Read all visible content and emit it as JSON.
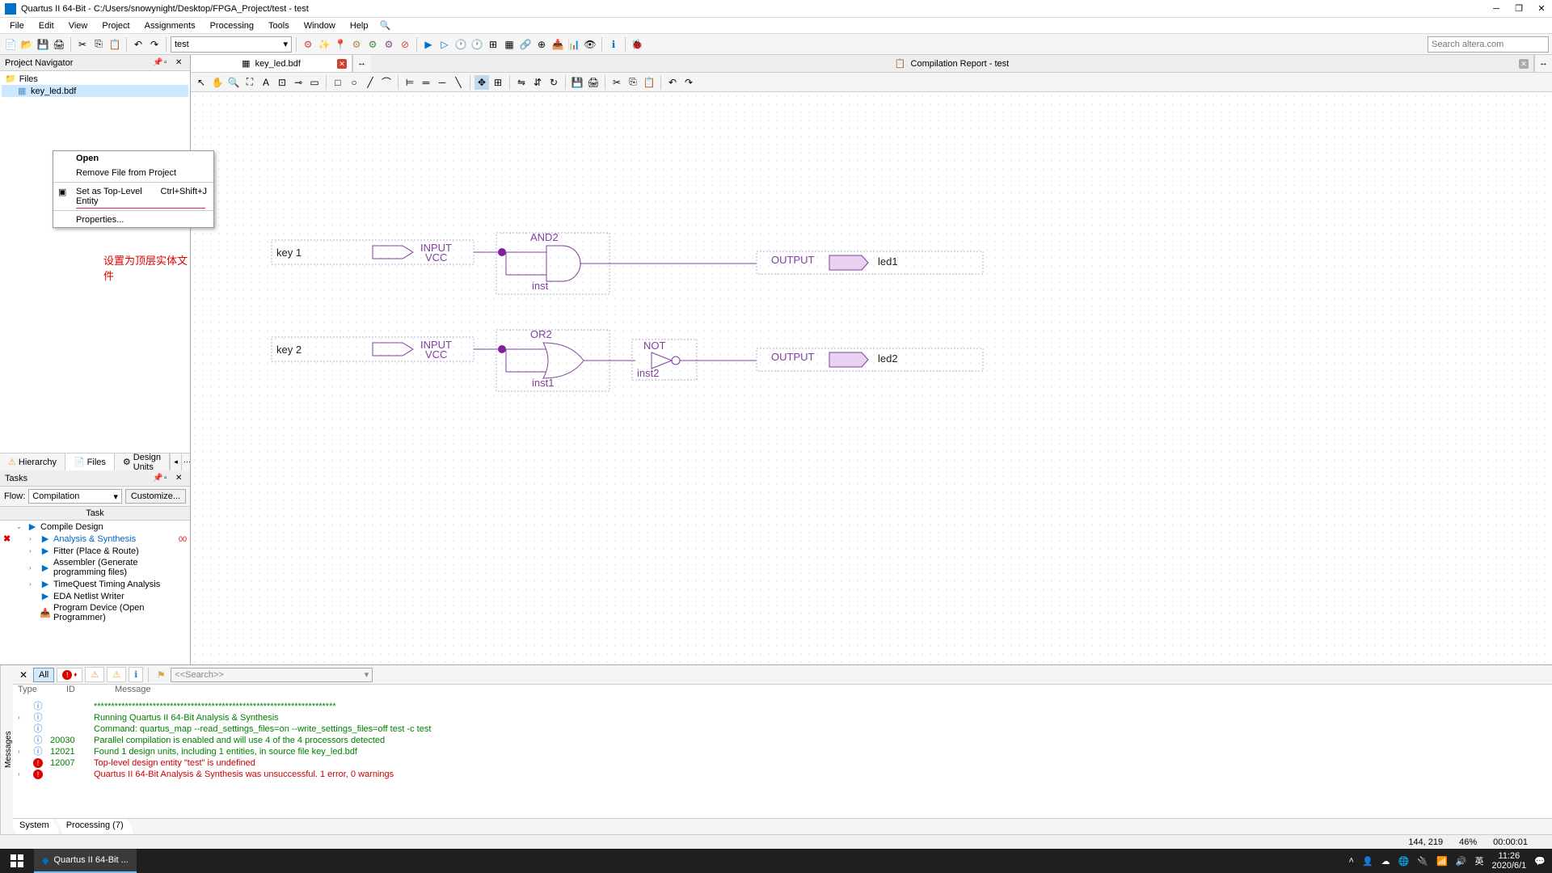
{
  "window": {
    "title": "Quartus II 64-Bit - C:/Users/snowynight/Desktop/FPGA_Project/test - test",
    "search_placeholder": "Search altera.com"
  },
  "menubar": [
    "File",
    "Edit",
    "View",
    "Project",
    "Assignments",
    "Processing",
    "Tools",
    "Window",
    "Help"
  ],
  "toolbar": {
    "project_combo": "test"
  },
  "project_nav": {
    "title": "Project Navigator",
    "root": "Files",
    "file": "key_led.bdf",
    "tabs": [
      "Hierarchy",
      "Files",
      "Design Units"
    ]
  },
  "context_menu": {
    "open": "Open",
    "remove": "Remove File from Project",
    "toplevel": "Set as Top-Level Entity",
    "toplevel_shortcut": "Ctrl+Shift+J",
    "properties": "Properties..."
  },
  "annotation": "设置为顶层实体文件",
  "tasks": {
    "title": "Tasks",
    "flow_label": "Flow:",
    "flow_value": "Compilation",
    "customize": "Customize...",
    "header": "Task",
    "items": [
      {
        "indent": 1,
        "icon": "play",
        "label": "Compile Design",
        "expand": "⌄"
      },
      {
        "indent": 2,
        "icon": "play",
        "label": "Analysis & Synthesis",
        "error": true,
        "expand": "›",
        "status": "✖",
        "suffix": "00"
      },
      {
        "indent": 2,
        "icon": "play",
        "label": "Fitter (Place & Route)",
        "expand": "›"
      },
      {
        "indent": 2,
        "icon": "play",
        "label": "Assembler (Generate programming files)",
        "expand": "›"
      },
      {
        "indent": 2,
        "icon": "play",
        "label": "TimeQuest Timing Analysis",
        "expand": "›"
      },
      {
        "indent": 2,
        "icon": "play",
        "label": "EDA Netlist Writer"
      },
      {
        "indent": 2,
        "icon": "prog",
        "label": "Program Device (Open Programmer)"
      }
    ]
  },
  "doc_tabs": {
    "active": "key_led.bdf",
    "inactive": "Compilation Report - test"
  },
  "schematic": {
    "key1": "key 1",
    "key2": "key 2",
    "input": "INPUT",
    "vcc": "VCC",
    "and2": "AND2",
    "or2": "OR2",
    "not": "NOT",
    "inst": "inst",
    "inst1": "inst1",
    "inst2": "inst2",
    "output": "OUTPUT",
    "led1": "led1",
    "led2": "led2"
  },
  "messages": {
    "filter_all": "All",
    "search_placeholder": "<<Search>>",
    "side_label": "Messages",
    "headers": [
      "Type",
      "ID",
      "Message"
    ],
    "rows": [
      {
        "icon": "info",
        "id": "",
        "text": "**********************************************************************",
        "color": "green"
      },
      {
        "icon": "info",
        "id": "",
        "text": "Running Quartus II 64-Bit Analysis & Synthesis",
        "color": "green",
        "expand": true
      },
      {
        "icon": "info",
        "id": "",
        "text": "Command: quartus_map --read_settings_files=on --write_settings_files=off test -c test",
        "color": "green"
      },
      {
        "icon": "info",
        "id": "20030",
        "text": "Parallel compilation is enabled and will use 4 of the 4 processors detected",
        "color": "green"
      },
      {
        "icon": "info",
        "id": "12021",
        "text": "Found 1 design units, including 1 entities, in source file key_led.bdf",
        "color": "green",
        "expand": true
      },
      {
        "icon": "error",
        "id": "12007",
        "text": "Top-level design entity \"test\" is undefined",
        "color": "red"
      },
      {
        "icon": "error",
        "id": "",
        "text": "Quartus II 64-Bit Analysis & Synthesis was unsuccessful. 1 error, 0 warnings",
        "color": "red",
        "expand": true
      }
    ],
    "tabs": [
      "System",
      "Processing (7)"
    ]
  },
  "statusbar": {
    "coords": "144, 219",
    "zoom": "46%",
    "time": "00:00:01"
  },
  "taskbar": {
    "app": "Quartus II 64-Bit ...",
    "ime": "英",
    "clock_time": "11:26",
    "clock_date": "2020/6/1"
  }
}
